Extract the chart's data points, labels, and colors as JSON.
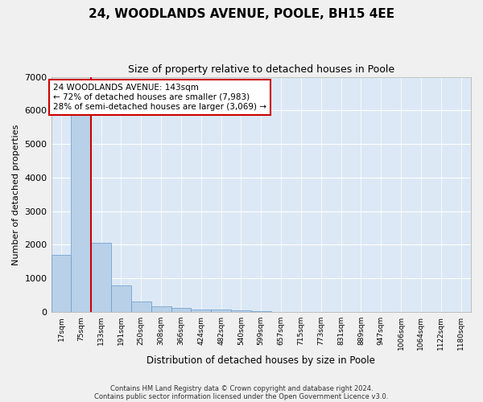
{
  "title1": "24, WOODLANDS AVENUE, POOLE, BH15 4EE",
  "title2": "Size of property relative to detached houses in Poole",
  "xlabel": "Distribution of detached houses by size in Poole",
  "ylabel": "Number of detached properties",
  "bar_labels": [
    "17sqm",
    "75sqm",
    "133sqm",
    "191sqm",
    "250sqm",
    "308sqm",
    "366sqm",
    "424sqm",
    "482sqm",
    "540sqm",
    "599sqm",
    "657sqm",
    "715sqm",
    "773sqm",
    "831sqm",
    "889sqm",
    "947sqm",
    "1006sqm",
    "1064sqm",
    "1122sqm",
    "1180sqm"
  ],
  "bar_values": [
    1700,
    5900,
    2050,
    800,
    310,
    180,
    120,
    80,
    65,
    50,
    30,
    0,
    0,
    0,
    0,
    0,
    0,
    0,
    0,
    0,
    0
  ],
  "bar_color": "#b8d0e8",
  "bar_edge_color": "#6699cc",
  "vline_color": "#cc0000",
  "ylim": [
    0,
    7000
  ],
  "yticks": [
    0,
    1000,
    2000,
    3000,
    4000,
    5000,
    6000,
    7000
  ],
  "annotation_text": "24 WOODLANDS AVENUE: 143sqm\n← 72% of detached houses are smaller (7,983)\n28% of semi-detached houses are larger (3,069) →",
  "annotation_box_facecolor": "#ffffff",
  "annotation_border_color": "#cc0000",
  "footer1": "Contains HM Land Registry data © Crown copyright and database right 2024.",
  "footer2": "Contains public sector information licensed under the Open Government Licence v3.0.",
  "fig_facecolor": "#f0f0f0",
  "plot_bg_color": "#dce8f5",
  "grid_color": "#ffffff",
  "title1_fontsize": 11,
  "title2_fontsize": 9
}
